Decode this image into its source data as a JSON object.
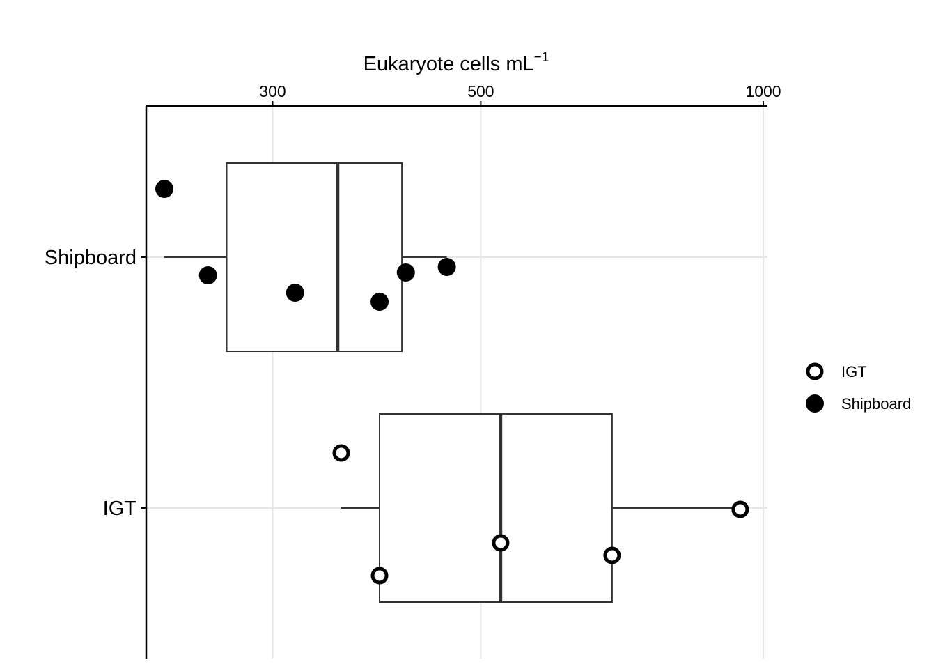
{
  "chart_data": {
    "type": "boxplot",
    "orientation": "horizontal",
    "title": "",
    "xlabel": "Eukaryote cells  mL",
    "xlabel_superscript": "−1",
    "x_axis_position": "top",
    "x_scale": "log",
    "xlim": [
      220,
      1000
    ],
    "x_ticks": [
      300,
      500,
      1000
    ],
    "x_tick_labels": [
      "300",
      "500",
      "1000"
    ],
    "categories": [
      "IGT",
      "Shipboard"
    ],
    "grid": true,
    "legend_position": "right",
    "legend": [
      {
        "label": "IGT",
        "marker": "open-circle"
      },
      {
        "label": "Shipboard",
        "marker": "filled-circle"
      }
    ],
    "boxes": [
      {
        "category": "Shipboard",
        "whisker_low": 230,
        "q1": 268,
        "median": 352,
        "q3": 412,
        "whisker_high": 460
      },
      {
        "category": "IGT",
        "whisker_low": 355,
        "q1": 390,
        "median": 525,
        "q3": 690,
        "whisker_high": 945
      }
    ],
    "points": [
      {
        "category": "Shipboard",
        "series": "Shipboard",
        "values": [
          230,
          256,
          317,
          390,
          416,
          460
        ]
      },
      {
        "category": "IGT",
        "series": "IGT",
        "values": [
          355,
          390,
          525,
          690,
          945
        ]
      }
    ]
  }
}
